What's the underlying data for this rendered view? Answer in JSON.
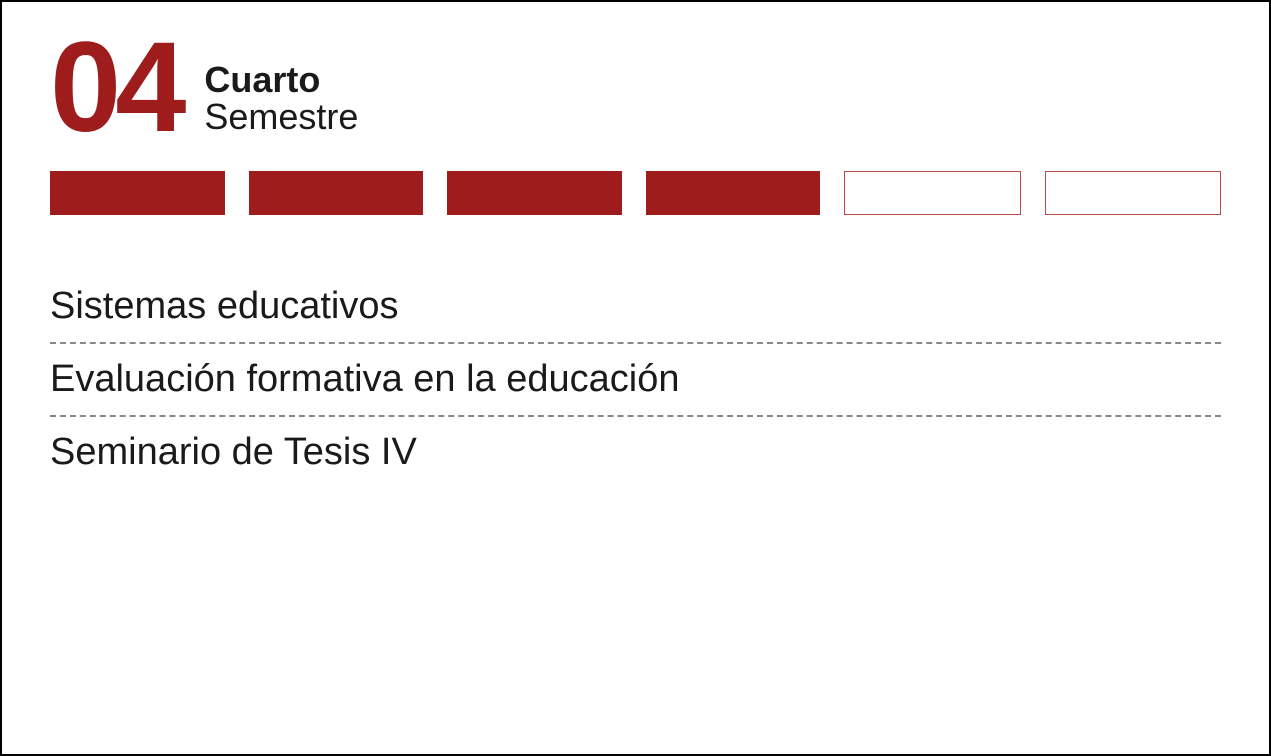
{
  "semester": {
    "number": "04",
    "title_bold": "Cuarto",
    "title_light": "Semestre"
  },
  "progress": {
    "total_segments": 6,
    "filled_segments": 4,
    "filled_color": "#9f1c1c",
    "empty_border_color": "#c04848",
    "empty_bg_color": "#ffffff",
    "segment_height": 44,
    "gap": 24
  },
  "courses": [
    "Sistemas educativos",
    "Evaluación formativa en la educación",
    "Seminario de Tesis IV"
  ],
  "styling": {
    "accent_color": "#9f1c1c",
    "text_color": "#1a1a1a",
    "divider_color": "#888888",
    "background_color": "#ffffff",
    "border_color": "#000000",
    "number_fontsize": 128,
    "title_fontsize": 36,
    "course_fontsize": 38
  }
}
